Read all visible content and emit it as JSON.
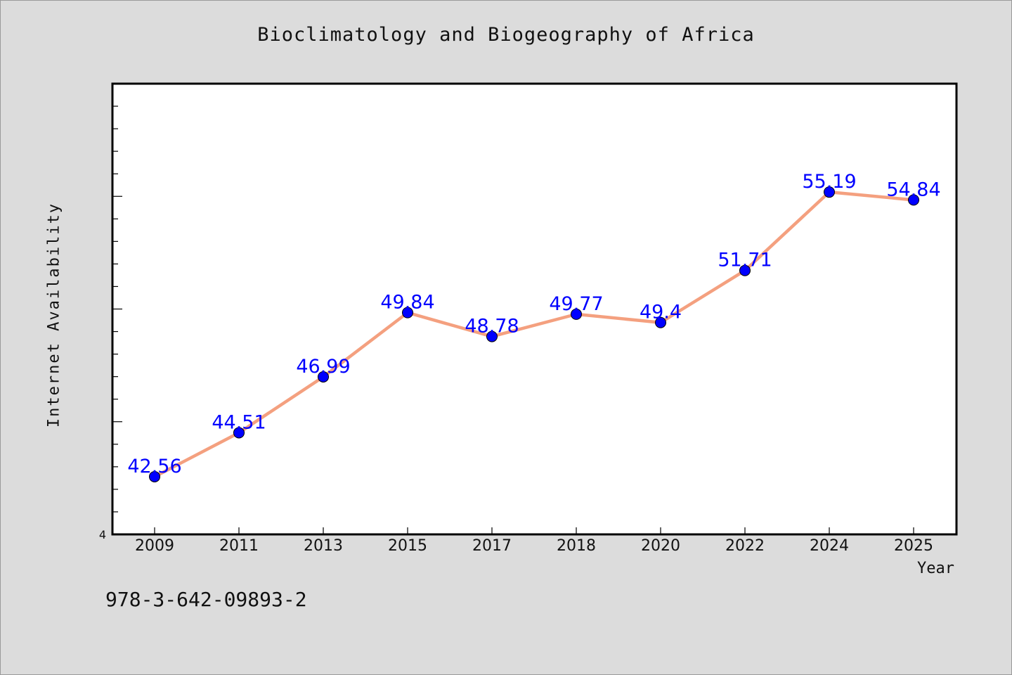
{
  "chart_data": {
    "type": "line",
    "title": "Bioclimatology and Biogeography of Africa",
    "xlabel": "Year",
    "ylabel": "Internet Availability",
    "categories": [
      "2009",
      "2011",
      "2013",
      "2015",
      "2017",
      "2018",
      "2020",
      "2022",
      "2024",
      "2025"
    ],
    "series": [
      {
        "values": [
          42.56,
          44.51,
          46.99,
          49.84,
          48.78,
          49.77,
          49.4,
          51.71,
          55.19,
          54.84
        ]
      }
    ],
    "data_labels": [
      "42.56",
      "44.51",
      "46.99",
      "49.84",
      "48.78",
      "49.77",
      "49.4",
      "51.71",
      "55.19",
      "54.84"
    ],
    "y_tick_label": "4",
    "ylim": [
      40,
      60
    ],
    "grid": false,
    "colors": {
      "line": "#f4a07f",
      "marker": "#0000ff",
      "label": "#0000ff",
      "background": "#dcdcdc",
      "plot_bg": "#ffffff"
    }
  },
  "footer_text": "978-3-642-09893-2"
}
